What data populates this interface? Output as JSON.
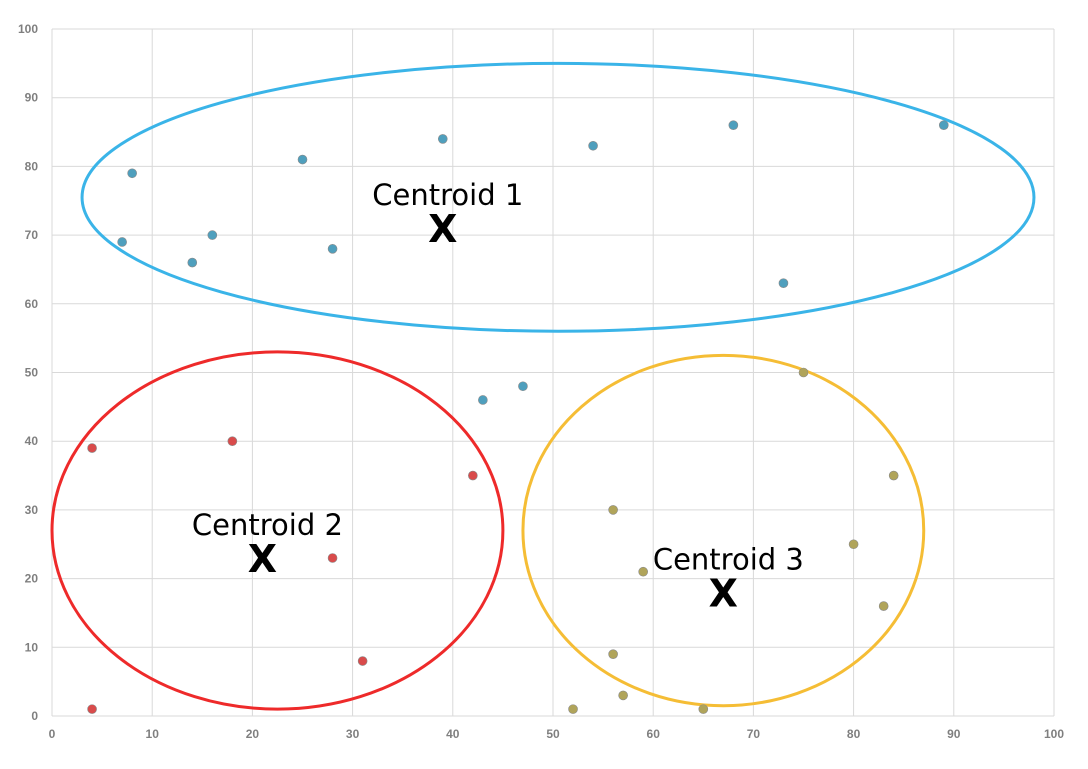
{
  "chart_data": {
    "type": "scatter",
    "xlim": [
      0,
      100
    ],
    "ylim": [
      0,
      100
    ],
    "x_ticks": [
      "0",
      "10",
      "20",
      "30",
      "40",
      "50",
      "60",
      "70",
      "80",
      "90",
      "100"
    ],
    "y_ticks": [
      "0",
      "10",
      "20",
      "30",
      "40",
      "50",
      "60",
      "70",
      "80",
      "90",
      "100"
    ],
    "grid": true,
    "series": [
      {
        "color": "#4f9fbd",
        "points": [
          {
            "x": 7,
            "y": 69
          },
          {
            "x": 8,
            "y": 79
          },
          {
            "x": 14,
            "y": 66
          },
          {
            "x": 16,
            "y": 70
          },
          {
            "x": 25,
            "y": 81
          },
          {
            "x": 28,
            "y": 68
          },
          {
            "x": 39,
            "y": 84
          },
          {
            "x": 54,
            "y": 83
          },
          {
            "x": 68,
            "y": 86
          },
          {
            "x": 73,
            "y": 63
          },
          {
            "x": 89,
            "y": 86
          },
          {
            "x": 43,
            "y": 46
          },
          {
            "x": 47,
            "y": 48
          }
        ]
      },
      {
        "color": "#d94b4b",
        "points": [
          {
            "x": 4,
            "y": 39
          },
          {
            "x": 4,
            "y": 1
          },
          {
            "x": 18,
            "y": 40
          },
          {
            "x": 28,
            "y": 23
          },
          {
            "x": 31,
            "y": 8
          },
          {
            "x": 42,
            "y": 35
          }
        ]
      },
      {
        "color": "#b0a45a",
        "points": [
          {
            "x": 52,
            "y": 1
          },
          {
            "x": 56,
            "y": 30
          },
          {
            "x": 56,
            "y": 9
          },
          {
            "x": 57,
            "y": 3
          },
          {
            "x": 59,
            "y": 21
          },
          {
            "x": 65,
            "y": 1
          },
          {
            "x": 75,
            "y": 50
          },
          {
            "x": 80,
            "y": 25
          },
          {
            "x": 83,
            "y": 16
          },
          {
            "x": 84,
            "y": 35
          }
        ]
      }
    ],
    "clusters": [
      {
        "label": "Centroid 1",
        "marker": "X",
        "center": {
          "x": 39,
          "y": 71
        },
        "color": "#3ab4e8",
        "ellipse": {
          "cx": 50.5,
          "cy": 75.5,
          "rx": 47.5,
          "ry": 19.5
        }
      },
      {
        "label": "Centroid 2",
        "marker": "X",
        "center": {
          "x": 21,
          "y": 23
        },
        "color": "#ee2a2a",
        "ellipse": {
          "cx": 22.5,
          "cy": 27,
          "rx": 22.5,
          "ry": 26
        }
      },
      {
        "label": "Centroid 3",
        "marker": "X",
        "center": {
          "x": 67,
          "y": 18
        },
        "color": "#f5bd35",
        "ellipse": {
          "cx": 67,
          "cy": 27,
          "rx": 20,
          "ry": 25.5
        }
      }
    ]
  }
}
